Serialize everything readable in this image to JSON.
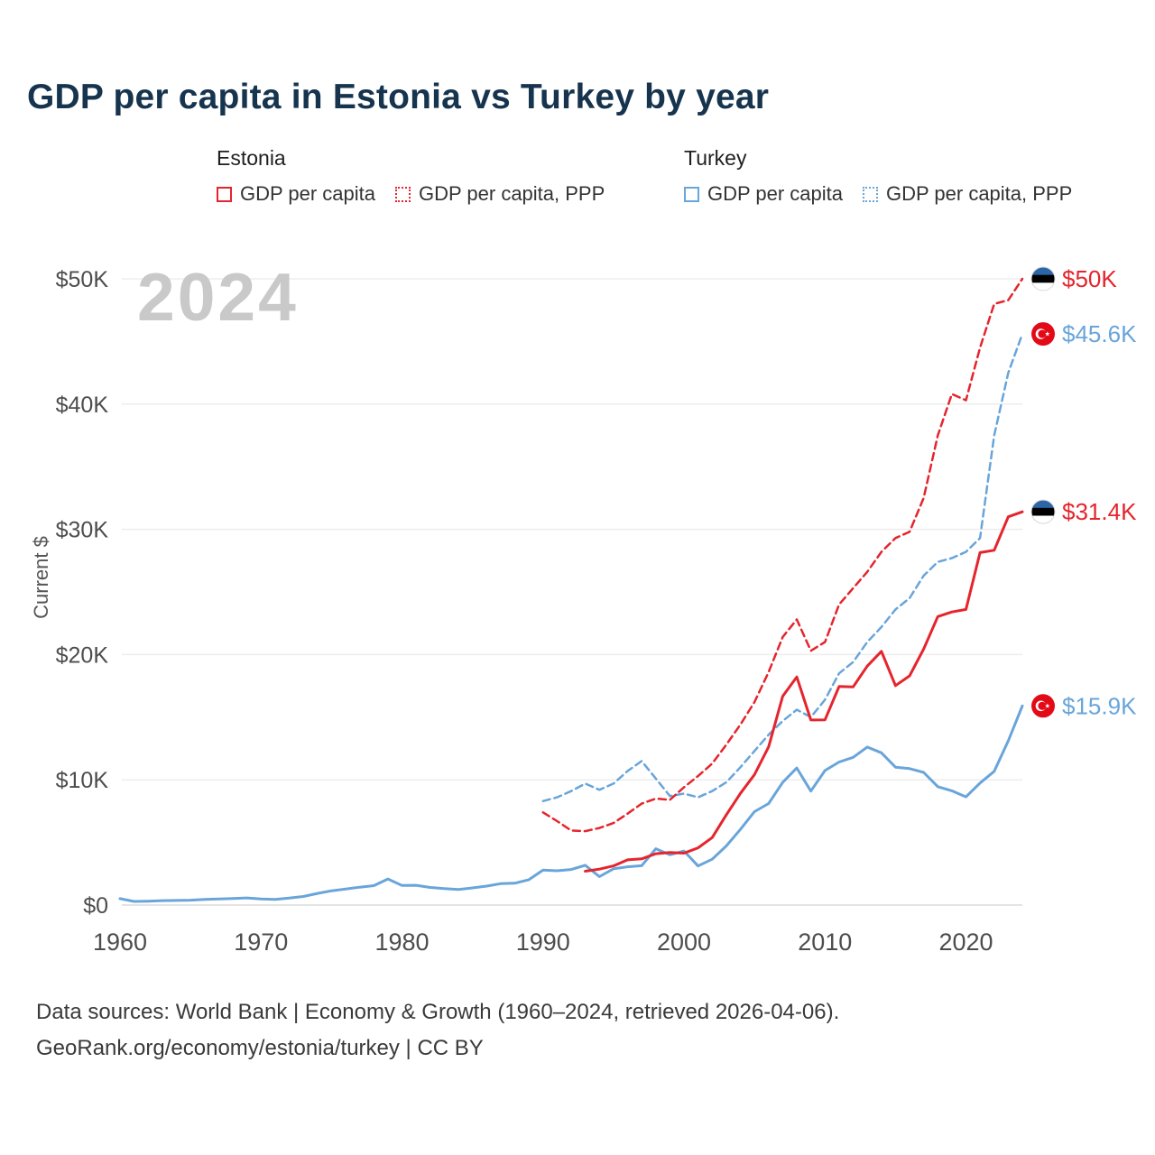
{
  "title": "GDP per capita in Estonia vs Turkey by year",
  "watermark": "2024",
  "ylabel": "Current $",
  "colors": {
    "estonia": "#e5252d",
    "turkey": "#69a5da",
    "estonia_flag_blue": "#2a66a8",
    "turkey_flag_red": "#e30a17",
    "title": "#17344f",
    "watermark": "#c9c9c9",
    "axis_text": "#4d4d4d",
    "grid": "#ededed"
  },
  "legend": {
    "groups": [
      {
        "label": "Estonia",
        "items": [
          {
            "label": "GDP per capita",
            "style": "solid"
          },
          {
            "label": "GDP per capita, PPP",
            "style": "dashed"
          }
        ]
      },
      {
        "label": "Turkey",
        "items": [
          {
            "label": "GDP per capita",
            "style": "solid"
          },
          {
            "label": "GDP per capita, PPP",
            "style": "dashed"
          }
        ]
      }
    ]
  },
  "footer": {
    "line1": "Data sources: World Bank | Economy & Growth (1960–2024, retrieved 2026-04-06).",
    "line2": "GeoRank.org/economy/estonia/turkey | CC BY"
  },
  "chart_data": {
    "type": "line",
    "title": "GDP per capita in Estonia vs Turkey by year",
    "xlabel": "",
    "ylabel": "Current $",
    "xlim": [
      1958,
      2026
    ],
    "ylim": [
      0,
      52000
    ],
    "grid": "horizontal",
    "legend_position": "top",
    "watermark": "2024",
    "xticks": [
      1960,
      1970,
      1980,
      1990,
      2000,
      2010,
      2020
    ],
    "yticks": [
      {
        "value": 0,
        "label": "$0"
      },
      {
        "value": 10000,
        "label": "$10K"
      },
      {
        "value": 20000,
        "label": "$20K"
      },
      {
        "value": 30000,
        "label": "$30K"
      },
      {
        "value": 40000,
        "label": "$40K"
      },
      {
        "value": 50000,
        "label": "$50K"
      }
    ],
    "series": [
      {
        "name": "Turkey GDP per capita, PPP",
        "country": "turkey",
        "line": "dashed",
        "points": [
          [
            1990,
            8300
          ],
          [
            1991,
            8600
          ],
          [
            1992,
            9100
          ],
          [
            1993,
            9700
          ],
          [
            1994,
            9200
          ],
          [
            1995,
            9700
          ],
          [
            1996,
            10700
          ],
          [
            1997,
            11500
          ],
          [
            1998,
            10100
          ],
          [
            1999,
            8700
          ],
          [
            2000,
            8900
          ],
          [
            2001,
            8600
          ],
          [
            2002,
            9100
          ],
          [
            2003,
            9800
          ],
          [
            2004,
            11000
          ],
          [
            2005,
            12300
          ],
          [
            2006,
            13600
          ],
          [
            2007,
            14700
          ],
          [
            2008,
            15600
          ],
          [
            2009,
            15000
          ],
          [
            2010,
            16400
          ],
          [
            2011,
            18500
          ],
          [
            2012,
            19400
          ],
          [
            2013,
            21000
          ],
          [
            2014,
            22200
          ],
          [
            2015,
            23600
          ],
          [
            2016,
            24500
          ],
          [
            2017,
            26300
          ],
          [
            2018,
            27400
          ],
          [
            2019,
            27700
          ],
          [
            2020,
            28200
          ],
          [
            2021,
            29300
          ],
          [
            2022,
            37500
          ],
          [
            2023,
            42500
          ],
          [
            2024,
            45600
          ]
        ]
      },
      {
        "name": "Estonia GDP per capita, PPP",
        "country": "estonia",
        "line": "dashed",
        "points": [
          [
            1990,
            7400
          ],
          [
            1991,
            6700
          ],
          [
            1992,
            5950
          ],
          [
            1993,
            5900
          ],
          [
            1994,
            6150
          ],
          [
            1995,
            6550
          ],
          [
            1996,
            7300
          ],
          [
            1997,
            8100
          ],
          [
            1998,
            8500
          ],
          [
            1999,
            8400
          ],
          [
            2000,
            9400
          ],
          [
            2001,
            10300
          ],
          [
            2002,
            11300
          ],
          [
            2003,
            12800
          ],
          [
            2004,
            14400
          ],
          [
            2005,
            16200
          ],
          [
            2006,
            18600
          ],
          [
            2007,
            21400
          ],
          [
            2008,
            22800
          ],
          [
            2009,
            20300
          ],
          [
            2010,
            21000
          ],
          [
            2011,
            24000
          ],
          [
            2012,
            25300
          ],
          [
            2013,
            26600
          ],
          [
            2014,
            28200
          ],
          [
            2015,
            29300
          ],
          [
            2016,
            29800
          ],
          [
            2017,
            32500
          ],
          [
            2018,
            37500
          ],
          [
            2019,
            40800
          ],
          [
            2020,
            40300
          ],
          [
            2021,
            44500
          ],
          [
            2022,
            48000
          ],
          [
            2023,
            48300
          ],
          [
            2024,
            50000
          ]
        ]
      },
      {
        "name": "Turkey GDP per capita",
        "country": "turkey",
        "line": "solid",
        "points": [
          [
            1960,
            509
          ],
          [
            1961,
            285
          ],
          [
            1962,
            309
          ],
          [
            1963,
            350
          ],
          [
            1964,
            369
          ],
          [
            1965,
            386
          ],
          [
            1966,
            444
          ],
          [
            1967,
            481
          ],
          [
            1968,
            526
          ],
          [
            1969,
            571
          ],
          [
            1970,
            489
          ],
          [
            1971,
            455
          ],
          [
            1972,
            558
          ],
          [
            1973,
            686
          ],
          [
            1974,
            928
          ],
          [
            1975,
            1136
          ],
          [
            1976,
            1276
          ],
          [
            1977,
            1427
          ],
          [
            1978,
            1550
          ],
          [
            1979,
            2079
          ],
          [
            1980,
            1564
          ],
          [
            1981,
            1579
          ],
          [
            1982,
            1402
          ],
          [
            1983,
            1310
          ],
          [
            1984,
            1246
          ],
          [
            1985,
            1368
          ],
          [
            1986,
            1510
          ],
          [
            1987,
            1705
          ],
          [
            1988,
            1745
          ],
          [
            1989,
            2021
          ],
          [
            1990,
            2794
          ],
          [
            1991,
            2735
          ],
          [
            1992,
            2842
          ],
          [
            1993,
            3180
          ],
          [
            1994,
            2270
          ],
          [
            1995,
            2898
          ],
          [
            1996,
            3053
          ],
          [
            1997,
            3144
          ],
          [
            1998,
            4496
          ],
          [
            1999,
            4012
          ],
          [
            2000,
            4317
          ],
          [
            2001,
            3119
          ],
          [
            2002,
            3660
          ],
          [
            2003,
            4718
          ],
          [
            2004,
            6040
          ],
          [
            2005,
            7456
          ],
          [
            2006,
            8102
          ],
          [
            2007,
            9791
          ],
          [
            2008,
            10941
          ],
          [
            2009,
            9103
          ],
          [
            2010,
            10742
          ],
          [
            2011,
            11420
          ],
          [
            2012,
            11795
          ],
          [
            2013,
            12614
          ],
          [
            2014,
            12157
          ],
          [
            2015,
            11006
          ],
          [
            2016,
            10894
          ],
          [
            2017,
            10589
          ],
          [
            2018,
            9454
          ],
          [
            2019,
            9122
          ],
          [
            2020,
            8638
          ],
          [
            2021,
            9743
          ],
          [
            2022,
            10674
          ],
          [
            2023,
            13110
          ],
          [
            2024,
            15900
          ]
        ]
      },
      {
        "name": "Estonia GDP per capita",
        "country": "estonia",
        "line": "solid",
        "points": [
          [
            1993,
            2700
          ],
          [
            1994,
            2870
          ],
          [
            1995,
            3130
          ],
          [
            1996,
            3610
          ],
          [
            1997,
            3690
          ],
          [
            1998,
            4100
          ],
          [
            1999,
            4190
          ],
          [
            2000,
            4140
          ],
          [
            2001,
            4570
          ],
          [
            2002,
            5390
          ],
          [
            2003,
            7200
          ],
          [
            2004,
            8910
          ],
          [
            2005,
            10410
          ],
          [
            2006,
            12630
          ],
          [
            2007,
            16670
          ],
          [
            2008,
            18210
          ],
          [
            2009,
            14780
          ],
          [
            2010,
            14790
          ],
          [
            2011,
            17450
          ],
          [
            2012,
            17420
          ],
          [
            2013,
            19080
          ],
          [
            2014,
            20260
          ],
          [
            2015,
            17520
          ],
          [
            2016,
            18300
          ],
          [
            2017,
            20440
          ],
          [
            2018,
            23030
          ],
          [
            2019,
            23400
          ],
          [
            2020,
            23600
          ],
          [
            2021,
            28140
          ],
          [
            2022,
            28330
          ],
          [
            2023,
            31000
          ],
          [
            2024,
            31400
          ]
        ]
      }
    ],
    "end_labels": [
      {
        "text": "$50K",
        "value": 50000,
        "flag": "estonia",
        "country": "estonia"
      },
      {
        "text": "$45.6K",
        "value": 45600,
        "flag": "turkey",
        "country": "turkey"
      },
      {
        "text": "$31.4K",
        "value": 31400,
        "flag": "estonia",
        "country": "estonia"
      },
      {
        "text": "$15.9K",
        "value": 15900,
        "flag": "turkey",
        "country": "turkey"
      }
    ]
  }
}
